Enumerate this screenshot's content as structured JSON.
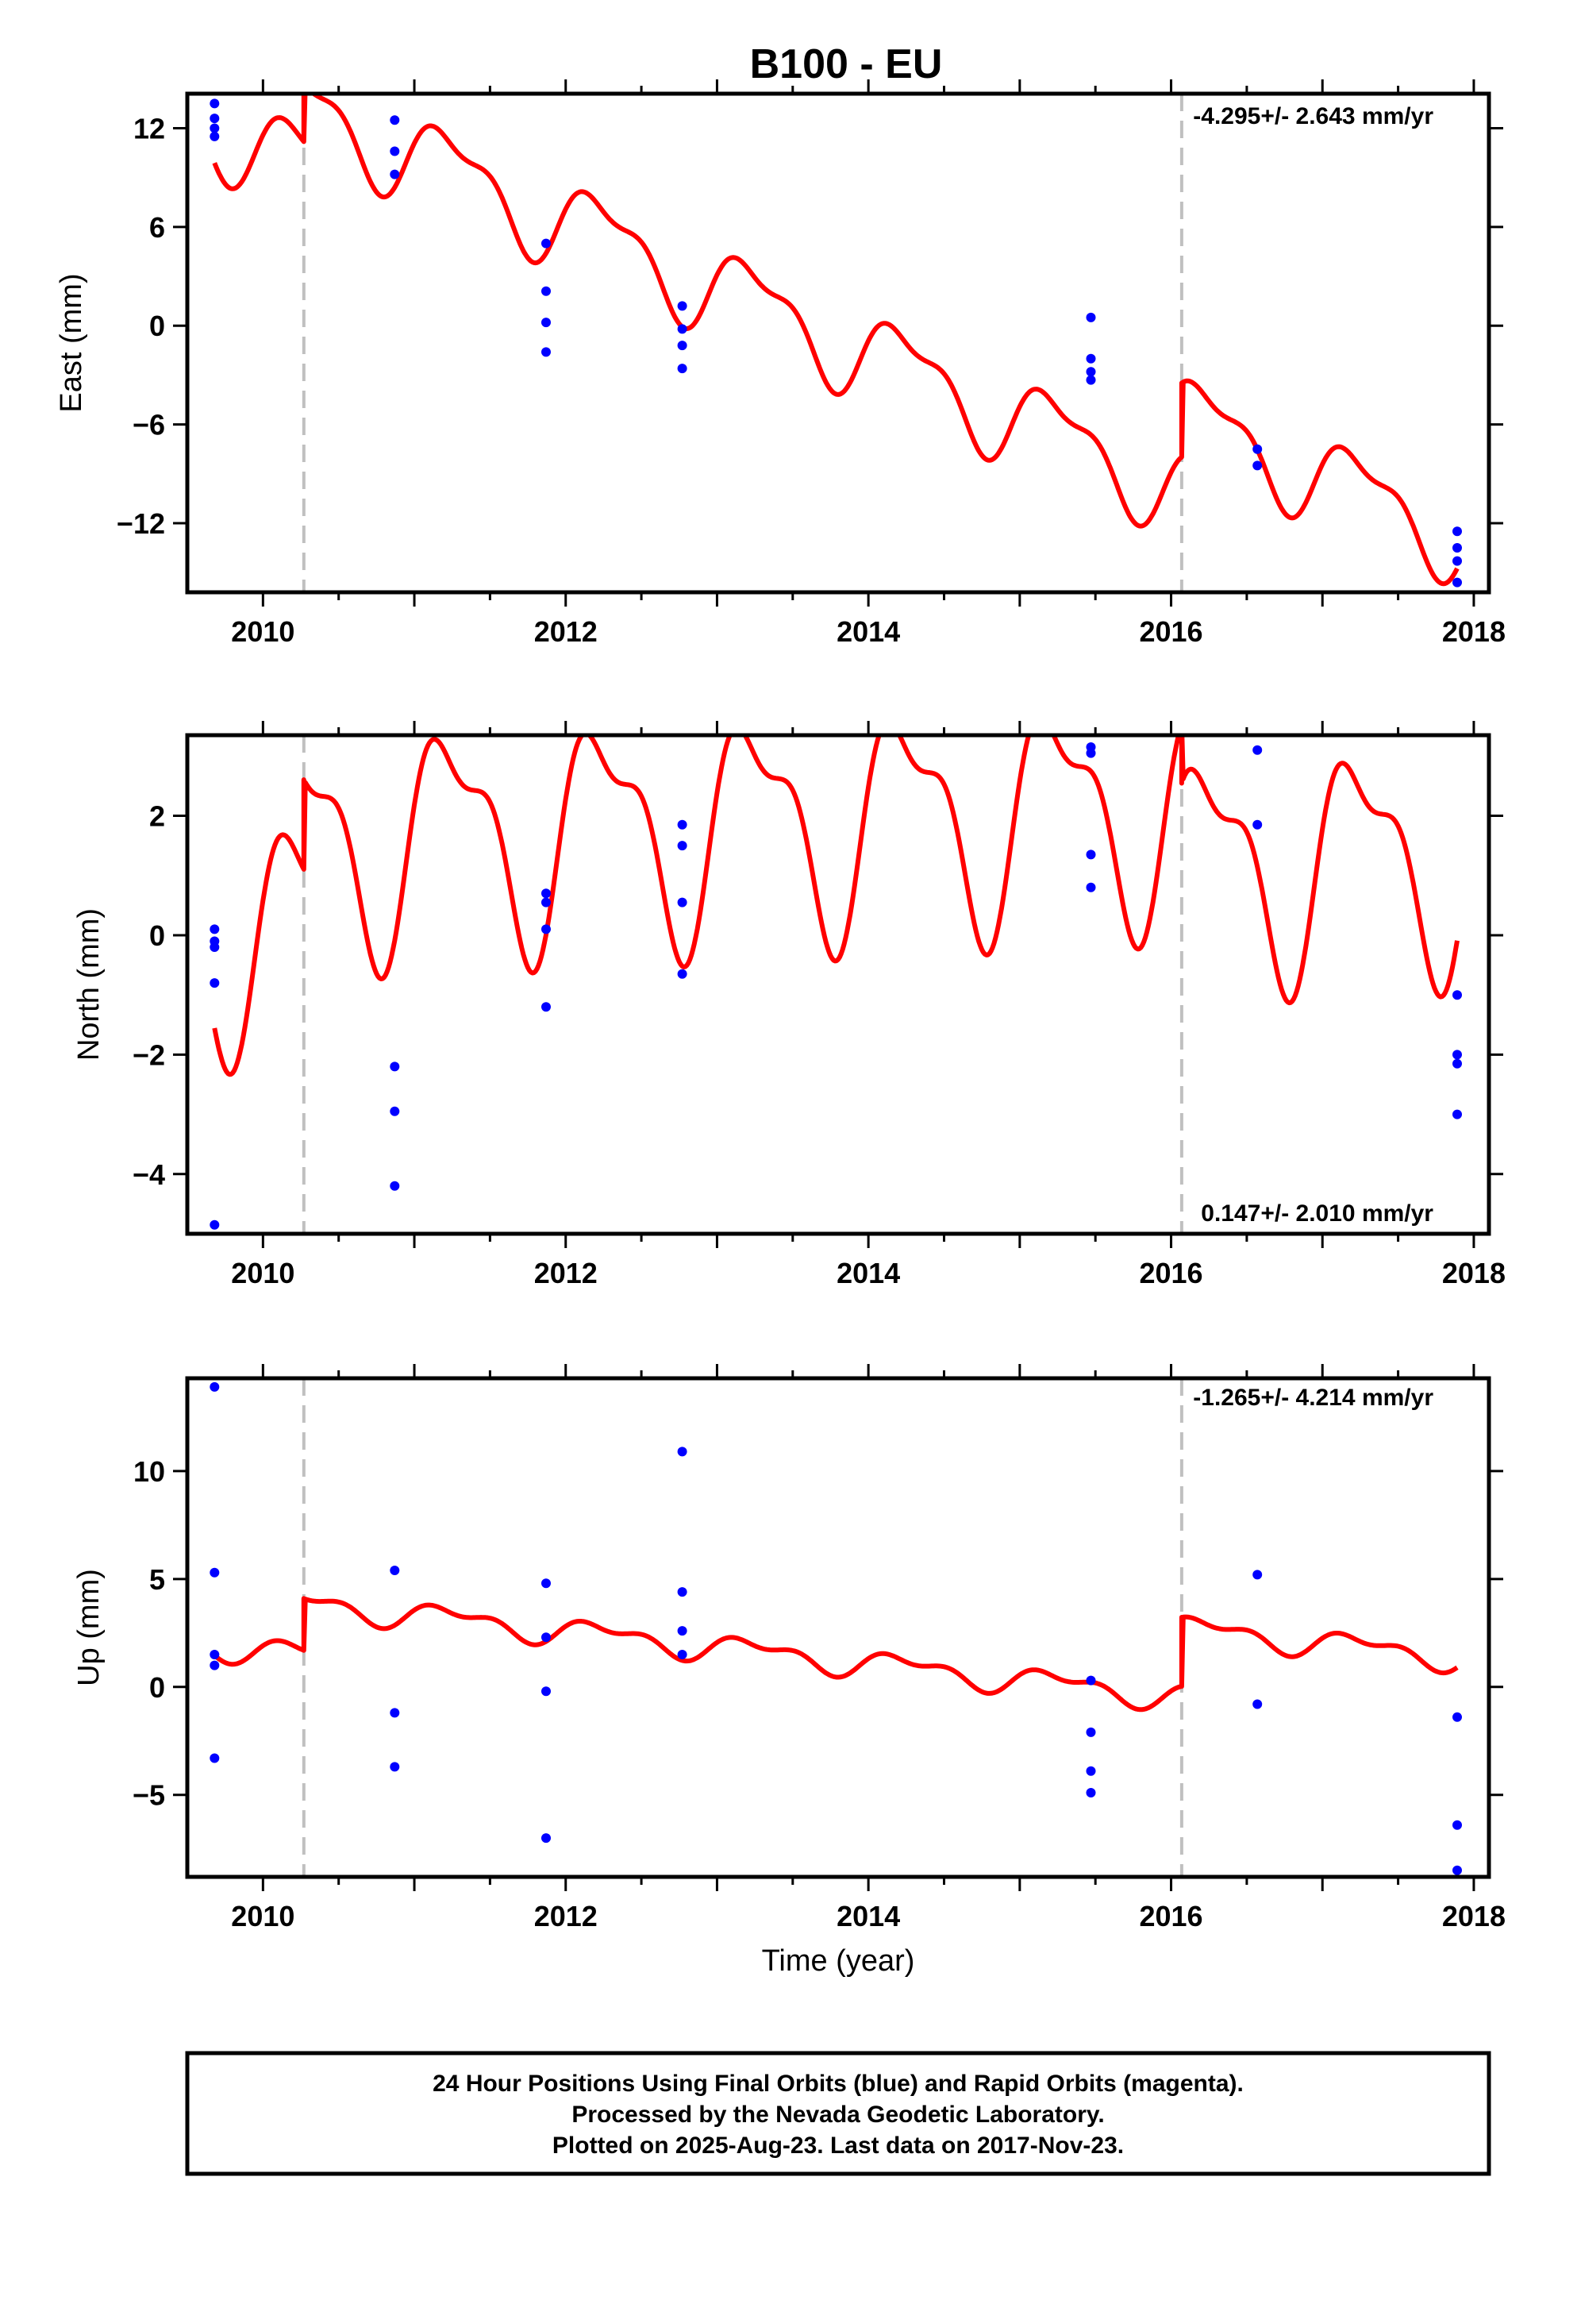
{
  "title": "B100 - EU",
  "xlabel": "Time (year)",
  "footer": {
    "lines": [
      "24 Hour Positions Using Final Orbits (blue) and Rapid Orbits (magenta).",
      "Processed by the Nevada Geodetic Laboratory.",
      "Plotted on 2025-Aug-23. Last data on 2017-Nov-23."
    ]
  },
  "colors": {
    "model": "#ff0000",
    "points": "#0000ff",
    "breaks": "#c0c0c0",
    "frame": "#000000"
  },
  "chart_data": [
    {
      "type": "scatter",
      "panel": "east",
      "ylabel": "East (mm)",
      "rate_label": "-4.295+/- 2.643 mm/yr",
      "rate_position": "top-right",
      "xlim": [
        2009.5,
        2018.1
      ],
      "ylim": [
        -16.2,
        14.1
      ],
      "xticks": [
        2010,
        2012,
        2014,
        2016,
        2018
      ],
      "yticks": [
        12,
        6,
        0,
        -6,
        -12
      ],
      "ytick_labels": [
        "12",
        "6",
        "0",
        "−6",
        "−12"
      ],
      "breaks": [
        2010.27,
        2016.07
      ],
      "model": {
        "base": 12.0,
        "slope": -4.0,
        "ref": 2009.7,
        "a1": 2.4,
        "a2": 1.0,
        "offsets": [
          [
            2010.27,
            3.5
          ],
          [
            2016.07,
            4.5
          ]
        ]
      },
      "points": [
        [
          2009.68,
          13.5
        ],
        [
          2009.68,
          12.6
        ],
        [
          2009.68,
          12.0
        ],
        [
          2009.68,
          11.5
        ],
        [
          2010.87,
          12.5
        ],
        [
          2010.87,
          10.6
        ],
        [
          2010.87,
          9.2
        ],
        [
          2011.87,
          5.0
        ],
        [
          2011.87,
          2.1
        ],
        [
          2011.87,
          0.2
        ],
        [
          2011.87,
          -1.6
        ],
        [
          2012.77,
          1.2
        ],
        [
          2012.77,
          -0.2
        ],
        [
          2012.77,
          -1.2
        ],
        [
          2012.77,
          -2.6
        ],
        [
          2015.47,
          0.5
        ],
        [
          2015.47,
          -2.0
        ],
        [
          2015.47,
          -2.8
        ],
        [
          2015.47,
          -3.3
        ],
        [
          2016.57,
          -7.5
        ],
        [
          2016.57,
          -8.5
        ],
        [
          2017.89,
          -12.5
        ],
        [
          2017.89,
          -13.5
        ],
        [
          2017.89,
          -14.3
        ],
        [
          2017.89,
          -15.6
        ]
      ]
    },
    {
      "type": "scatter",
      "panel": "north",
      "ylabel": "North (mm)",
      "rate_label": "0.147+/- 2.010 mm/yr",
      "rate_position": "bottom-right",
      "xlim": [
        2009.5,
        2018.1
      ],
      "ylim": [
        -5.0,
        3.35
      ],
      "xticks": [
        2010,
        2012,
        2014,
        2016,
        2018
      ],
      "yticks": [
        2,
        0,
        -2,
        -4
      ],
      "ytick_labels": [
        "2",
        "0",
        "−2",
        "−4"
      ],
      "breaks": [
        2010.27,
        2016.07
      ],
      "model": {
        "base": 0.0,
        "slope": 0.1,
        "ref": 2009.7,
        "a1": 1.7,
        "a2": 0.7,
        "offsets": [
          [
            2010.27,
            1.5
          ],
          [
            2016.07,
            -1.0
          ]
        ]
      },
      "points": [
        [
          2009.68,
          0.1
        ],
        [
          2009.68,
          -0.1
        ],
        [
          2009.68,
          -0.2
        ],
        [
          2009.68,
          -0.8
        ],
        [
          2009.68,
          -4.85
        ],
        [
          2010.87,
          -2.2
        ],
        [
          2010.87,
          -2.95
        ],
        [
          2010.87,
          -4.2
        ],
        [
          2011.87,
          0.7
        ],
        [
          2011.87,
          0.55
        ],
        [
          2011.87,
          0.1
        ],
        [
          2011.87,
          -1.2
        ],
        [
          2012.77,
          1.85
        ],
        [
          2012.77,
          1.5
        ],
        [
          2012.77,
          0.55
        ],
        [
          2012.77,
          -0.65
        ],
        [
          2015.47,
          3.15
        ],
        [
          2015.47,
          3.05
        ],
        [
          2015.47,
          1.35
        ],
        [
          2015.47,
          0.8
        ],
        [
          2016.57,
          3.1
        ],
        [
          2016.57,
          1.85
        ],
        [
          2017.89,
          -1.0
        ],
        [
          2017.89,
          -2.0
        ],
        [
          2017.89,
          -2.15
        ],
        [
          2017.89,
          -3.0
        ]
      ]
    },
    {
      "type": "scatter",
      "panel": "up",
      "ylabel": "Up (mm)",
      "rate_label": "-1.265+/- 4.214 mm/yr",
      "rate_position": "top-right",
      "xlim": [
        2009.5,
        2018.1
      ],
      "ylim": [
        -8.8,
        14.3
      ],
      "xticks": [
        2010,
        2012,
        2014,
        2016,
        2018
      ],
      "yticks": [
        10,
        5,
        0,
        -5
      ],
      "ytick_labels": [
        "10",
        "5",
        "0",
        "−5"
      ],
      "breaks": [
        2010.27,
        2016.07
      ],
      "model": {
        "base": 1.9,
        "slope": -0.75,
        "ref": 2009.7,
        "a1": 0.5,
        "a2": 0.3,
        "offsets": [
          [
            2010.27,
            2.4
          ],
          [
            2016.07,
            3.2
          ]
        ]
      },
      "points": [
        [
          2009.68,
          13.9
        ],
        [
          2009.68,
          5.3
        ],
        [
          2009.68,
          1.5
        ],
        [
          2009.68,
          1.0
        ],
        [
          2009.68,
          -3.3
        ],
        [
          2010.87,
          5.4
        ],
        [
          2010.87,
          -1.2
        ],
        [
          2010.87,
          -3.7
        ],
        [
          2011.87,
          4.8
        ],
        [
          2011.87,
          2.3
        ],
        [
          2011.87,
          -0.2
        ],
        [
          2011.87,
          -7.0
        ],
        [
          2012.77,
          10.9
        ],
        [
          2012.77,
          4.4
        ],
        [
          2012.77,
          2.6
        ],
        [
          2012.77,
          1.5
        ],
        [
          2015.47,
          0.3
        ],
        [
          2015.47,
          -2.1
        ],
        [
          2015.47,
          -3.9
        ],
        [
          2015.47,
          -4.9
        ],
        [
          2016.57,
          5.2
        ],
        [
          2016.57,
          -0.8
        ],
        [
          2017.89,
          -1.4
        ],
        [
          2017.89,
          -6.4
        ],
        [
          2017.89,
          -8.5
        ]
      ]
    }
  ]
}
